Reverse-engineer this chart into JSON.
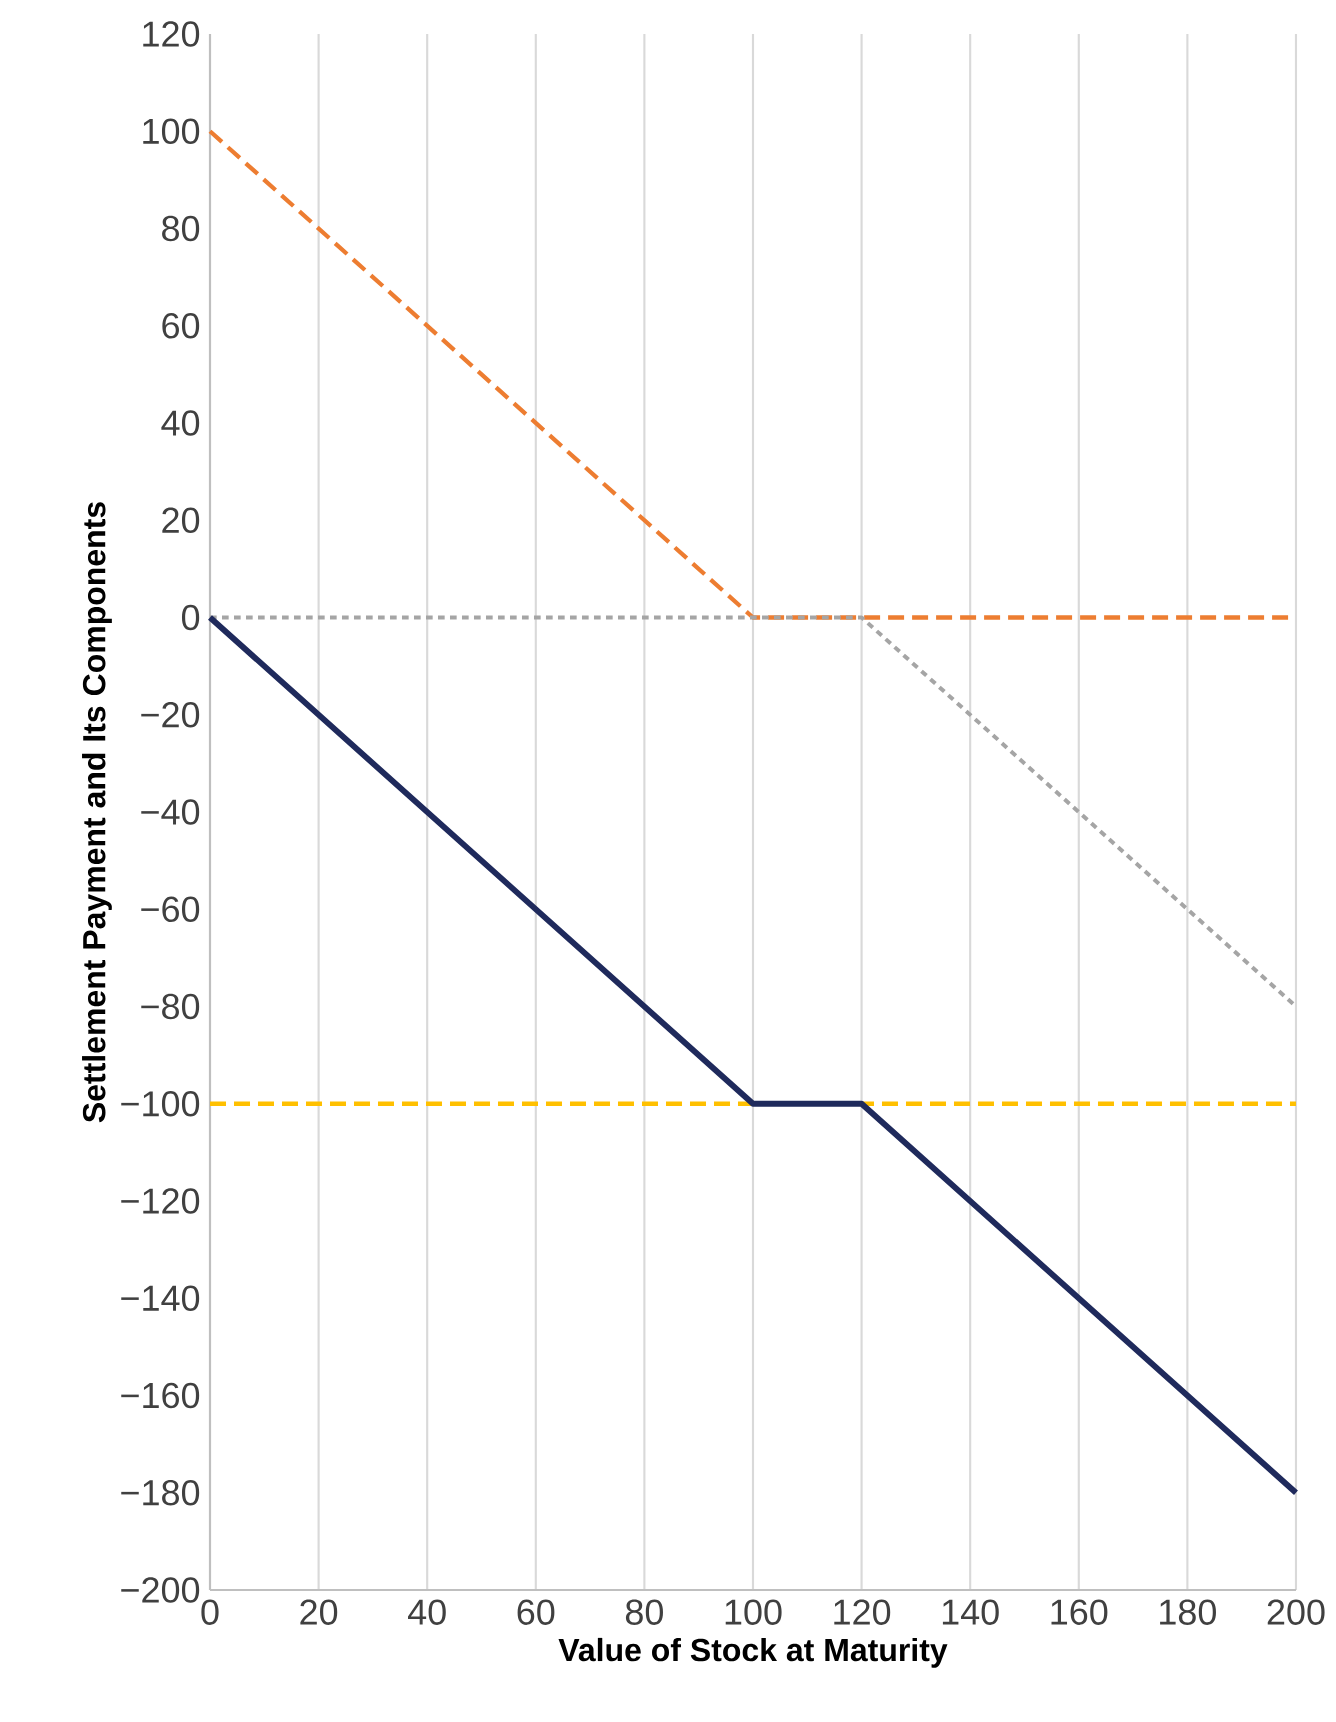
{
  "chart_data": {
    "type": "line",
    "xlabel": "Value of Stock at Maturity",
    "ylabel": "Settlement Payment and Its Components",
    "xlim": [
      0,
      200
    ],
    "ylim": [
      -200,
      120
    ],
    "xticks": [
      0,
      20,
      40,
      60,
      80,
      100,
      120,
      140,
      160,
      180,
      200
    ],
    "yticks": [
      {
        "value": -200,
        "label": "−200"
      },
      {
        "value": -180,
        "label": "−180"
      },
      {
        "value": -160,
        "label": "−160"
      },
      {
        "value": -140,
        "label": "−140"
      },
      {
        "value": -120,
        "label": "−120"
      },
      {
        "value": -100,
        "label": "−100"
      },
      {
        "value": -80,
        "label": "−80"
      },
      {
        "value": -60,
        "label": "−60"
      },
      {
        "value": -40,
        "label": "−40"
      },
      {
        "value": -20,
        "label": "−20"
      },
      0,
      20,
      40,
      60,
      80,
      100,
      120
    ],
    "grid": "x",
    "marker": "none",
    "series": [
      {
        "color": "#ed7d31",
        "line_style": "dashed",
        "x": [
          0,
          100,
          200
        ],
        "values": [
          100,
          0,
          0
        ]
      },
      {
        "color": "#a5a5a5",
        "line_style": "dotted",
        "x": [
          0,
          120,
          200
        ],
        "values": [
          0,
          0,
          -80
        ]
      },
      {
        "color": "#ffc000",
        "line_style": "dashed",
        "x": [
          0,
          200
        ],
        "values": [
          -100,
          -100
        ]
      },
      {
        "color": "#1f2a5c",
        "line_style": "solid",
        "x": [
          0,
          100,
          120,
          200
        ],
        "values": [
          0,
          -100,
          -100,
          -180
        ]
      }
    ]
  }
}
